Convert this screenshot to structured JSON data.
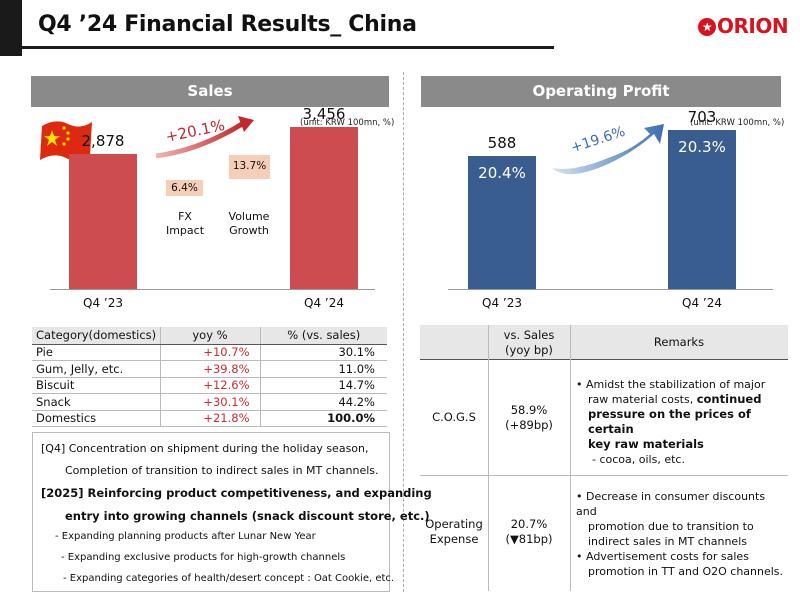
{
  "header": {
    "title": "Q4 ’24 Financial Results_ China",
    "logo_text": "ORION"
  },
  "sales": {
    "section_title": "Sales",
    "unit": "(unit: KRW 100mn, %)",
    "growth": "+20.1%",
    "fx_value": "6.4%",
    "fx_label_line1": "FX",
    "fx_label_line2": "Impact",
    "volume_value": "13.7%",
    "volume_label_line1": "Volume",
    "volume_label_line2": "Growth"
  },
  "operating": {
    "section_title": "Operating Profit",
    "unit": "(unit: KRW 100mn, %)",
    "growth": "+19.6%"
  },
  "chart_data": [
    {
      "type": "bar",
      "categories": [
        "Q4 ’23",
        "Q4 ’24"
      ],
      "values": [
        2878,
        3456
      ],
      "value_labels": [
        "2,878",
        "3,456"
      ],
      "title": "Sales",
      "ylim": [
        0,
        3800
      ],
      "bar_color": "#cd4c50"
    },
    {
      "type": "bar",
      "categories": [
        "Q4 ’23",
        "Q4 ’24"
      ],
      "values": [
        588,
        703
      ],
      "value_labels": [
        "588",
        "703"
      ],
      "margin_labels": [
        "20.4%",
        "20.3%"
      ],
      "title": "Operating Profit",
      "ylim": [
        0,
        780
      ],
      "bar_color": "#3a5d8f"
    }
  ],
  "category_table": {
    "headers": [
      "Category(domestics)",
      "yoy %",
      "% (vs. sales)"
    ],
    "rows": [
      [
        "Pie",
        "+10.7%",
        "30.1%"
      ],
      [
        "Gum, Jelly, etc.",
        "+39.8%",
        "11.0%"
      ],
      [
        "Biscuit",
        "+12.6%",
        "14.7%"
      ],
      [
        "Snack",
        "+30.1%",
        "44.2%"
      ],
      [
        "Domestics",
        "+21.8%",
        "100.0%"
      ]
    ]
  },
  "notes": {
    "q4_line1": "[Q4] Concentration on shipment during the holiday season,",
    "q4_line2": "Completion of transition to indirect sales in MT channels.",
    "y2025_line1": "[2025] Reinforcing product competitiveness, and expanding",
    "y2025_line2": "entry into growing channels (snack discount store, etc.)",
    "bullet1": "- Expanding planning products after Lunar New Year",
    "bullet2": "- Expanding exclusive products for high-growth channels",
    "bullet3": "- Expanding categories of health/desert concept : Oat Cookie, etc."
  },
  "op_table": {
    "header_vs_line1": "vs. Sales",
    "header_vs_line2": "(yoy bp)",
    "header_remarks": "Remarks",
    "cogs_label": "C.O.G.S",
    "cogs_value_line1": "58.9%",
    "cogs_value_line2": "(+89bp)",
    "cogs_r1": "• Amidst the stabilization of major",
    "cogs_r2": "raw material costs,",
    "cogs_r2b": "continued",
    "cogs_r3": "pressure on the prices of certain",
    "cogs_r4": "key raw materials",
    "cogs_r5": "- cocoa, oils, etc.",
    "opex_label_line1": "Operating",
    "opex_label_line2": "Expense",
    "opex_value_line1": "20.7%",
    "opex_value_line2": "(▼81bp)",
    "opex_r1": "• Decrease in consumer discounts and",
    "opex_r2": "promotion due to transition to",
    "opex_r3": "indirect sales in MT channels",
    "opex_r4": "• Advertisement costs for sales",
    "opex_r5": "promotion in TT and O2O channels."
  }
}
